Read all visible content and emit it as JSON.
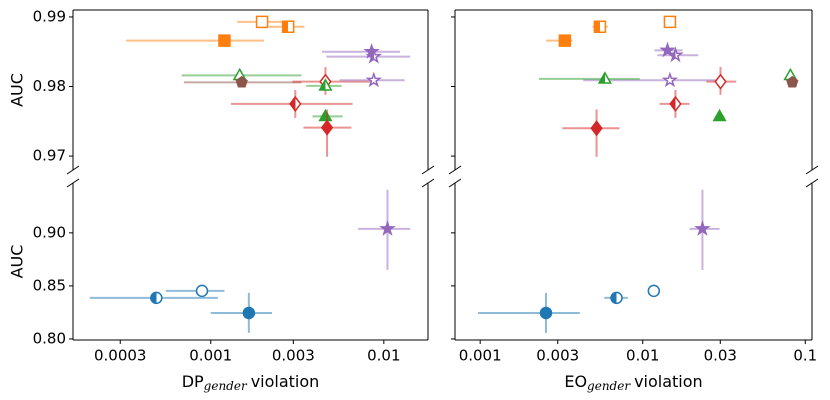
{
  "chart_data": [
    {
      "type": "scatter",
      "xscale": "log",
      "broken_edge": "bottom",
      "ylabel": "AUC",
      "xlim": [
        0.00016,
        0.018
      ],
      "ylim": [
        0.968,
        0.991
      ],
      "yticks": [
        0.97,
        0.98,
        0.99
      ],
      "show_ytick_labels": true,
      "points": [
        {
          "x": 0.00198,
          "y": 0.9893,
          "xerr": [
            0.00142,
            0.00284
          ],
          "color": "#ff7f0e",
          "marker": "square",
          "fill": "none"
        },
        {
          "x": 0.0028,
          "y": 0.9886,
          "xerr": [
            0.00217,
            0.00348
          ],
          "color": "#ff7f0e",
          "marker": "square",
          "fill": "left"
        },
        {
          "x": 0.0012,
          "y": 0.9866,
          "xerr": [
            0.000325,
            0.00203
          ],
          "color": "#ff7f0e",
          "marker": "square",
          "fill": "full"
        },
        {
          "x": 0.00147,
          "y": 0.9816,
          "xerr": [
            0.00068,
            0.00334
          ],
          "color": "#2ca02c",
          "marker": "triangle",
          "fill": "none"
        },
        {
          "x": 0.00151,
          "y": 0.9806,
          "xerr": [
            0.0007,
            0.00334
          ],
          "color": "#8c564b",
          "marker": "pentagon",
          "fill": "full"
        },
        {
          "x": 0.0046,
          "y": 0.9807,
          "xerr": [
            0.00296,
            0.00887
          ],
          "yerr": [
            0.9788,
            0.9828
          ],
          "color": "#d62728",
          "marker": "diamond",
          "fill": "none"
        },
        {
          "x": 0.0046,
          "y": 0.9801,
          "xerr": [
            0.00356,
            0.0057
          ],
          "color": "#2ca02c",
          "marker": "triangle",
          "fill": "left"
        },
        {
          "x": 0.00308,
          "y": 0.9775,
          "xerr": [
            0.00131,
            0.0066
          ],
          "yerr": [
            0.9755,
            0.9795
          ],
          "color": "#d62728",
          "marker": "diamond",
          "fill": "left"
        },
        {
          "x": 0.0046,
          "y": 0.9757,
          "xerr": [
            0.00387,
            0.00578
          ],
          "color": "#2ca02c",
          "marker": "triangle",
          "fill": "full"
        },
        {
          "x": 0.0047,
          "y": 0.9741,
          "xerr": [
            0.00343,
            0.0065
          ],
          "yerr": [
            0.9699,
            0.9767
          ],
          "color": "#d62728",
          "marker": "diamond",
          "fill": "full"
        },
        {
          "x": 0.0085,
          "y": 0.985,
          "xerr": [
            0.0044,
            0.0124
          ],
          "color": "#9467bd",
          "marker": "star",
          "fill": "full"
        },
        {
          "x": 0.00875,
          "y": 0.9843,
          "xerr": [
            0.00466,
            0.0142
          ],
          "color": "#9467bd",
          "marker": "star",
          "fill": "left"
        },
        {
          "x": 0.00875,
          "y": 0.9809,
          "xerr": [
            0.00554,
            0.0132
          ],
          "color": "#9467bd",
          "marker": "star",
          "fill": "none"
        }
      ]
    },
    {
      "type": "scatter",
      "xscale": "log",
      "broken_edge": "top",
      "ylabel": "AUC",
      "xlabel": {
        "main": "DP",
        "sub": "gender",
        "rest": "violation"
      },
      "xlim": [
        0.00016,
        0.018
      ],
      "ylim": [
        0.799,
        0.947
      ],
      "xticks": [
        0.0003,
        0.001,
        0.003,
        0.01
      ],
      "yticks": [
        {
          "value": 0.8,
          "label": "0.80"
        },
        0.85,
        {
          "value": 0.9,
          "label": "0.90"
        }
      ],
      "show_ytick_labels": true,
      "points": [
        {
          "x": 0.000485,
          "y": 0.8387,
          "xerr": [
            0.0002,
            0.0011
          ],
          "color": "#1f77b4",
          "marker": "circle",
          "fill": "left"
        },
        {
          "x": 0.00089,
          "y": 0.8453,
          "xerr": [
            0.00055,
            0.0012
          ],
          "color": "#1f77b4",
          "marker": "circle",
          "fill": "none"
        },
        {
          "x": 0.00166,
          "y": 0.8245,
          "xerr": [
            0.001,
            0.00226
          ],
          "yerr": [
            0.8057,
            0.8434
          ],
          "color": "#1f77b4",
          "marker": "circle",
          "fill": "full"
        },
        {
          "x": 0.0105,
          "y": 0.9038,
          "xerr": [
            0.0071,
            0.0142
          ],
          "yerr": [
            0.8651,
            0.9406
          ],
          "color": "#9467bd",
          "marker": "star",
          "fill": "full"
        }
      ]
    },
    {
      "type": "scatter",
      "xscale": "log",
      "broken_edge": "bottom",
      "xlim": [
        0.0007,
        0.11
      ],
      "ylim": [
        0.968,
        0.991
      ],
      "yticks": [
        0.97,
        0.98,
        0.99
      ],
      "show_ytick_labels": false,
      "points": [
        {
          "x": 0.0147,
          "y": 0.9893,
          "color": "#ff7f0e",
          "marker": "square",
          "fill": "none"
        },
        {
          "x": 0.00545,
          "y": 0.9886,
          "xerr": [
            0.0049,
            0.0061
          ],
          "color": "#ff7f0e",
          "marker": "square",
          "fill": "left"
        },
        {
          "x": 0.00332,
          "y": 0.9866,
          "xerr": [
            0.00254,
            0.0037
          ],
          "color": "#ff7f0e",
          "marker": "square",
          "fill": "full"
        },
        {
          "x": 0.0142,
          "y": 0.9852,
          "xerr": [
            0.0118,
            0.0176
          ],
          "color": "#9467bd",
          "marker": "star",
          "fill": "full"
        },
        {
          "x": 0.0159,
          "y": 0.9845,
          "xerr": [
            0.0123,
            0.022
          ],
          "color": "#9467bd",
          "marker": "star",
          "fill": "left"
        },
        {
          "x": 0.0147,
          "y": 0.9809,
          "xerr": [
            0.0043,
            0.0288
          ],
          "color": "#9467bd",
          "marker": "star",
          "fill": "none"
        },
        {
          "x": 0.0301,
          "y": 0.9807,
          "xerr": [
            0.0246,
            0.0376
          ],
          "yerr": [
            0.9788,
            0.9828
          ],
          "color": "#d62728",
          "marker": "diamond",
          "fill": "none"
        },
        {
          "x": 0.00585,
          "y": 0.9811,
          "xerr": [
            0.0023,
            0.0096
          ],
          "color": "#2ca02c",
          "marker": "triangle",
          "fill": "left"
        },
        {
          "x": 0.081,
          "y": 0.9816,
          "color": "#2ca02c",
          "marker": "triangle",
          "fill": "none"
        },
        {
          "x": 0.0832,
          "y": 0.9806,
          "color": "#8c564b",
          "marker": "pentagon",
          "fill": "full"
        },
        {
          "x": 0.0159,
          "y": 0.9775,
          "xerr": [
            0.0127,
            0.0194
          ],
          "yerr": [
            0.9755,
            0.9795
          ],
          "color": "#d62728",
          "marker": "diamond",
          "fill": "left"
        },
        {
          "x": 0.0297,
          "y": 0.9757,
          "xerr": [
            0.028,
            0.0316
          ],
          "color": "#2ca02c",
          "marker": "triangle",
          "fill": "full"
        },
        {
          "x": 0.0052,
          "y": 0.974,
          "xerr": [
            0.0032,
            0.0072
          ],
          "yerr": [
            0.9699,
            0.9767
          ],
          "color": "#d62728",
          "marker": "diamond",
          "fill": "full"
        }
      ]
    },
    {
      "type": "scatter",
      "xscale": "log",
      "broken_edge": "top",
      "xlabel": {
        "main": "EO",
        "sub": "gender",
        "rest": "violation"
      },
      "xlim": [
        0.0007,
        0.11
      ],
      "ylim": [
        0.799,
        0.947
      ],
      "xticks": [
        0.001,
        0.003,
        0.01,
        0.03,
        0.1
      ],
      "yticks": [
        {
          "value": 0.8,
          "label": "0.80"
        },
        0.85,
        {
          "value": 0.9,
          "label": "0.90"
        }
      ],
      "show_ytick_labels": false,
      "points": [
        {
          "x": 0.0117,
          "y": 0.8453,
          "color": "#1f77b4",
          "marker": "circle",
          "fill": "none"
        },
        {
          "x": 0.0069,
          "y": 0.8387,
          "xerr": [
            0.0058,
            0.0081
          ],
          "color": "#1f77b4",
          "marker": "circle",
          "fill": "left"
        },
        {
          "x": 0.00254,
          "y": 0.8245,
          "xerr": [
            0.00097,
            0.0041
          ],
          "yerr": [
            0.8057,
            0.8434
          ],
          "color": "#1f77b4",
          "marker": "circle",
          "fill": "full"
        },
        {
          "x": 0.0233,
          "y": 0.9038,
          "xerr": [
            0.0194,
            0.0297
          ],
          "yerr": [
            0.8651,
            0.9406
          ],
          "color": "#9467bd",
          "marker": "star",
          "fill": "full"
        }
      ]
    }
  ]
}
